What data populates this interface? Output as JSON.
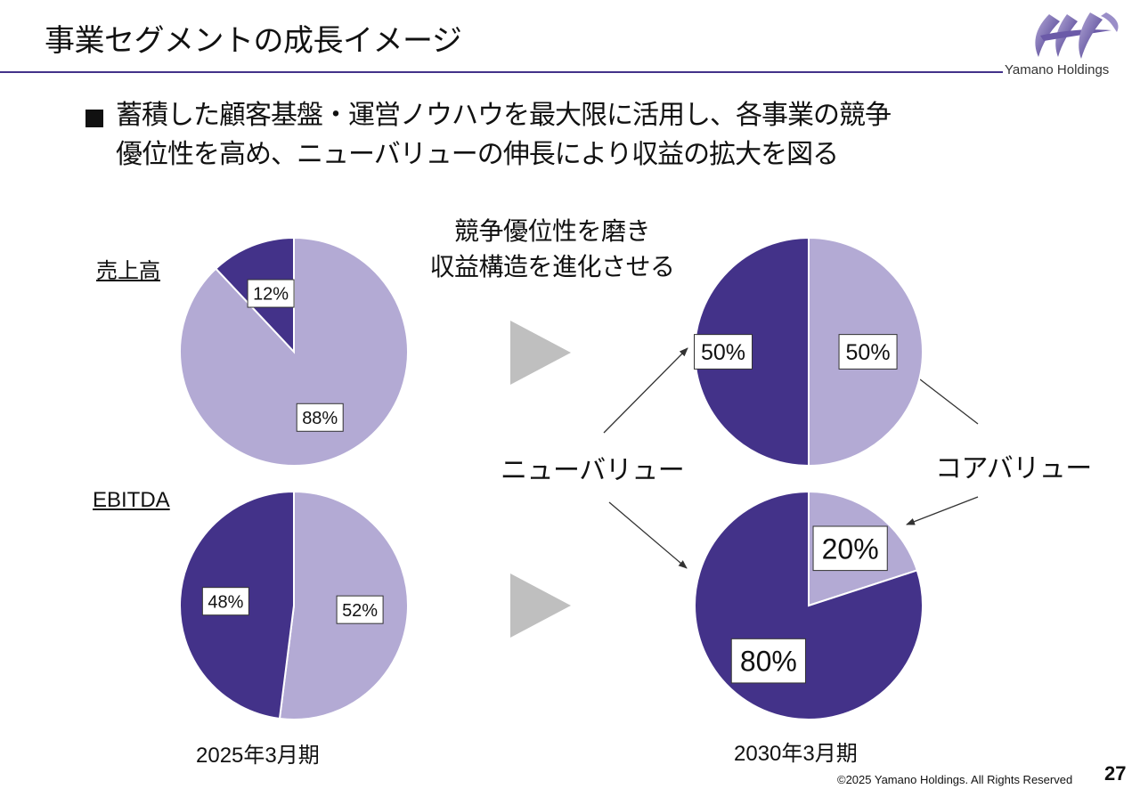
{
  "header": {
    "title": "事業セグメントの成長イメージ",
    "company": "Yamano Holdings"
  },
  "bullet": {
    "line1": "蓄積した顧客基盤・運営ノウハウを最大限に活用し、各事業の競争",
    "line2": "優位性を高め、ニューバリューの伸長により収益の拡大を図る"
  },
  "center_caption": {
    "line1": "競争優位性を磨き",
    "line2": "収益構造を進化させる"
  },
  "labels": {
    "sales": "売上高",
    "ebitda": "EBITDA",
    "period_2025": "2025年3月期",
    "period_2030": "2030年3月期",
    "new_value": "ニューバリュー",
    "core_value": "コアバリュー"
  },
  "colors": {
    "new_value": "#433289",
    "core_value": "#b3aad4",
    "arrow_gray": "#bfbfbf",
    "rule": "#433289"
  },
  "chart_data": [
    {
      "type": "pie",
      "row": "売上高",
      "period": "2025年3月期",
      "slices": [
        {
          "series": "ニューバリュー",
          "value": 12,
          "label": "12%"
        },
        {
          "series": "コアバリュー",
          "value": 88,
          "label": "88%"
        }
      ]
    },
    {
      "type": "pie",
      "row": "売上高",
      "period": "2030年3月期",
      "slices": [
        {
          "series": "ニューバリュー",
          "value": 50,
          "label": "50%"
        },
        {
          "series": "コアバリュー",
          "value": 50,
          "label": "50%"
        }
      ]
    },
    {
      "type": "pie",
      "row": "EBITDA",
      "period": "2025年3月期",
      "slices": [
        {
          "series": "ニューバリュー",
          "value": 48,
          "label": "48%"
        },
        {
          "series": "コアバリュー",
          "value": 52,
          "label": "52%"
        }
      ]
    },
    {
      "type": "pie",
      "row": "EBITDA",
      "period": "2030年3月期",
      "slices": [
        {
          "series": "ニューバリュー",
          "value": 80,
          "label": "80%"
        },
        {
          "series": "コアバリュー",
          "value": 20,
          "label": "20%"
        }
      ]
    }
  ],
  "footer": {
    "copyright": "©2025 Yamano Holdings. All Rights Reserved",
    "page_number": "27"
  }
}
